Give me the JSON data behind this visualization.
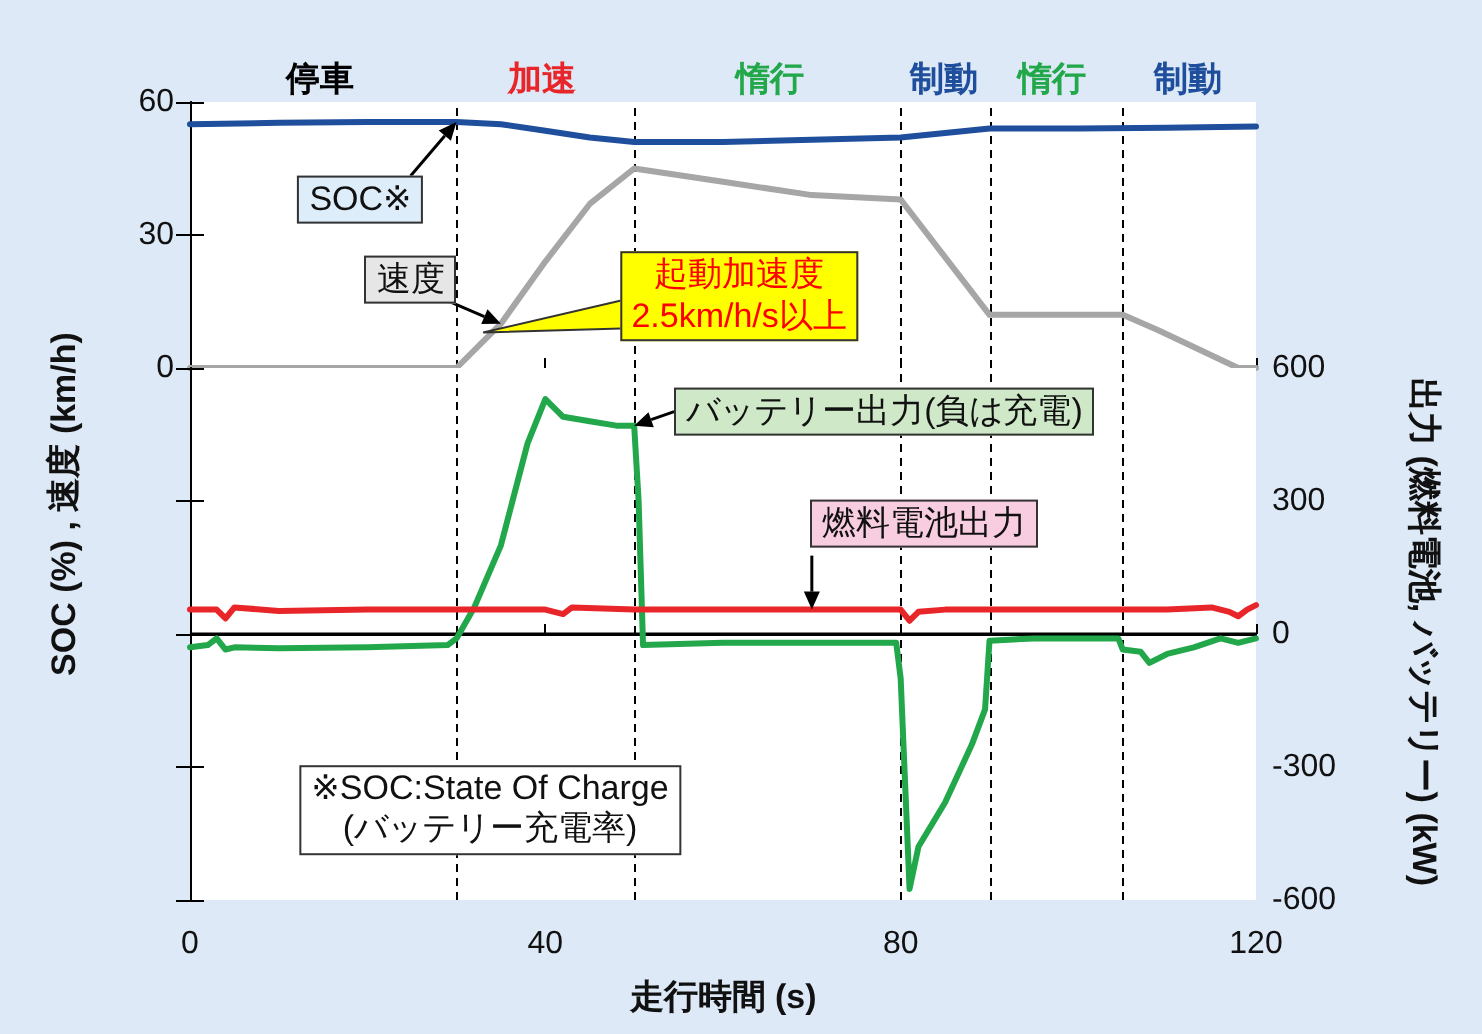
{
  "chart_data": [
    {
      "type": "line",
      "ylabel": "SOC (%) , 速度 (km/h)",
      "xlim": [
        0,
        120
      ],
      "xticks": [
        0,
        40,
        80,
        120
      ],
      "ylim": [
        0,
        60
      ],
      "yticks": [
        0,
        30,
        60
      ],
      "tick_labels": "y",
      "ref_lines": [
        {
          "axis": "x",
          "value": 30,
          "color": "#000000",
          "line_style": "dashed"
        },
        {
          "axis": "x",
          "value": 50,
          "color": "#000000",
          "line_style": "dashed"
        },
        {
          "axis": "x",
          "value": 80,
          "color": "#000000",
          "line_style": "dashed"
        },
        {
          "axis": "x",
          "value": 90,
          "color": "#000000",
          "line_style": "dashed"
        },
        {
          "axis": "x",
          "value": 105,
          "color": "#000000",
          "line_style": "dashed"
        }
      ],
      "annotations": [
        {
          "text": "起動加速度\n2.5km/h/s以上",
          "x": 33,
          "y": 8
        },
        "停車",
        "加速",
        "惰行",
        "制動",
        "惰行",
        "制動"
      ],
      "series": [
        {
          "name": "SOC※",
          "color": "#1f4e9c",
          "x": [
            0,
            10,
            20,
            30,
            35,
            40,
            45,
            50,
            60,
            70,
            80,
            85,
            90,
            100,
            110,
            120
          ],
          "values": [
            55,
            55.3,
            55.5,
            55.5,
            55,
            53.5,
            52,
            51,
            51,
            51.5,
            52,
            53,
            54,
            54,
            54.2,
            54.5
          ]
        },
        {
          "name": "速度",
          "color": "#a6a6a6",
          "x": [
            0,
            30,
            35,
            40,
            45,
            50,
            60,
            70,
            80,
            90,
            105,
            109,
            118,
            120
          ],
          "values": [
            0,
            0,
            10,
            24,
            37,
            45,
            42,
            39,
            38,
            12,
            12,
            8.5,
            0,
            0
          ]
        }
      ]
    },
    {
      "type": "line",
      "xlabel": "走行時間 (s)",
      "ylabel": "出力 (燃料電池, バッテリー) (kW)",
      "xlim": [
        0,
        120
      ],
      "xticks": [
        0,
        40,
        80,
        120
      ],
      "ylim": [
        -600,
        600
      ],
      "yticks": [
        -600,
        -300,
        0,
        300,
        600
      ],
      "ref_lines": [
        {
          "axis": "x",
          "value": 30,
          "color": "#000000",
          "line_style": "dashed"
        },
        {
          "axis": "x",
          "value": 50,
          "color": "#000000",
          "line_style": "dashed"
        },
        {
          "axis": "x",
          "value": 80,
          "color": "#000000",
          "line_style": "dashed"
        },
        {
          "axis": "x",
          "value": 90,
          "color": "#000000",
          "line_style": "dashed"
        },
        {
          "axis": "x",
          "value": 105,
          "color": "#000000",
          "line_style": "dashed"
        },
        {
          "axis": "y",
          "value": 0,
          "color": "#000000",
          "line_style": "solid"
        }
      ],
      "annotations": [
        "※SOC:State Of Charge\n(バッテリー充電率)"
      ],
      "series": [
        {
          "name": "バッテリー出力(負は充電)",
          "color": "#22a84a",
          "x": [
            0,
            2,
            3,
            4,
            5,
            10,
            20,
            29,
            30,
            32,
            35,
            38,
            40,
            42,
            45,
            48,
            50,
            50.5,
            51,
            60,
            70,
            79.5,
            80,
            81,
            82,
            85,
            88,
            89.5,
            90,
            95,
            100,
            104.5,
            105,
            107,
            108,
            110,
            113,
            116,
            118,
            120
          ],
          "values": [
            -30,
            -25,
            -10,
            -35,
            -30,
            -32,
            -30,
            -25,
            -10,
            60,
            200,
            430,
            530,
            490,
            480,
            470,
            470,
            300,
            -25,
            -20,
            -20,
            -20,
            -100,
            -575,
            -480,
            -380,
            -250,
            -170,
            -15,
            -10,
            -10,
            -10,
            -35,
            -40,
            -65,
            -45,
            -30,
            -10,
            -20,
            -10
          ]
        },
        {
          "name": "燃料電池出力",
          "color": "#e8262a",
          "x": [
            0,
            3,
            4,
            5,
            10,
            20,
            30,
            40,
            42,
            43,
            50,
            60,
            70,
            80,
            81,
            82,
            85,
            90,
            100,
            110,
            115,
            117,
            118,
            119,
            120
          ],
          "values": [
            55,
            55,
            35,
            60,
            52,
            55,
            55,
            55,
            45,
            60,
            55,
            55,
            55,
            55,
            30,
            50,
            55,
            55,
            55,
            55,
            60,
            50,
            40,
            55,
            65
          ]
        }
      ]
    }
  ]
}
